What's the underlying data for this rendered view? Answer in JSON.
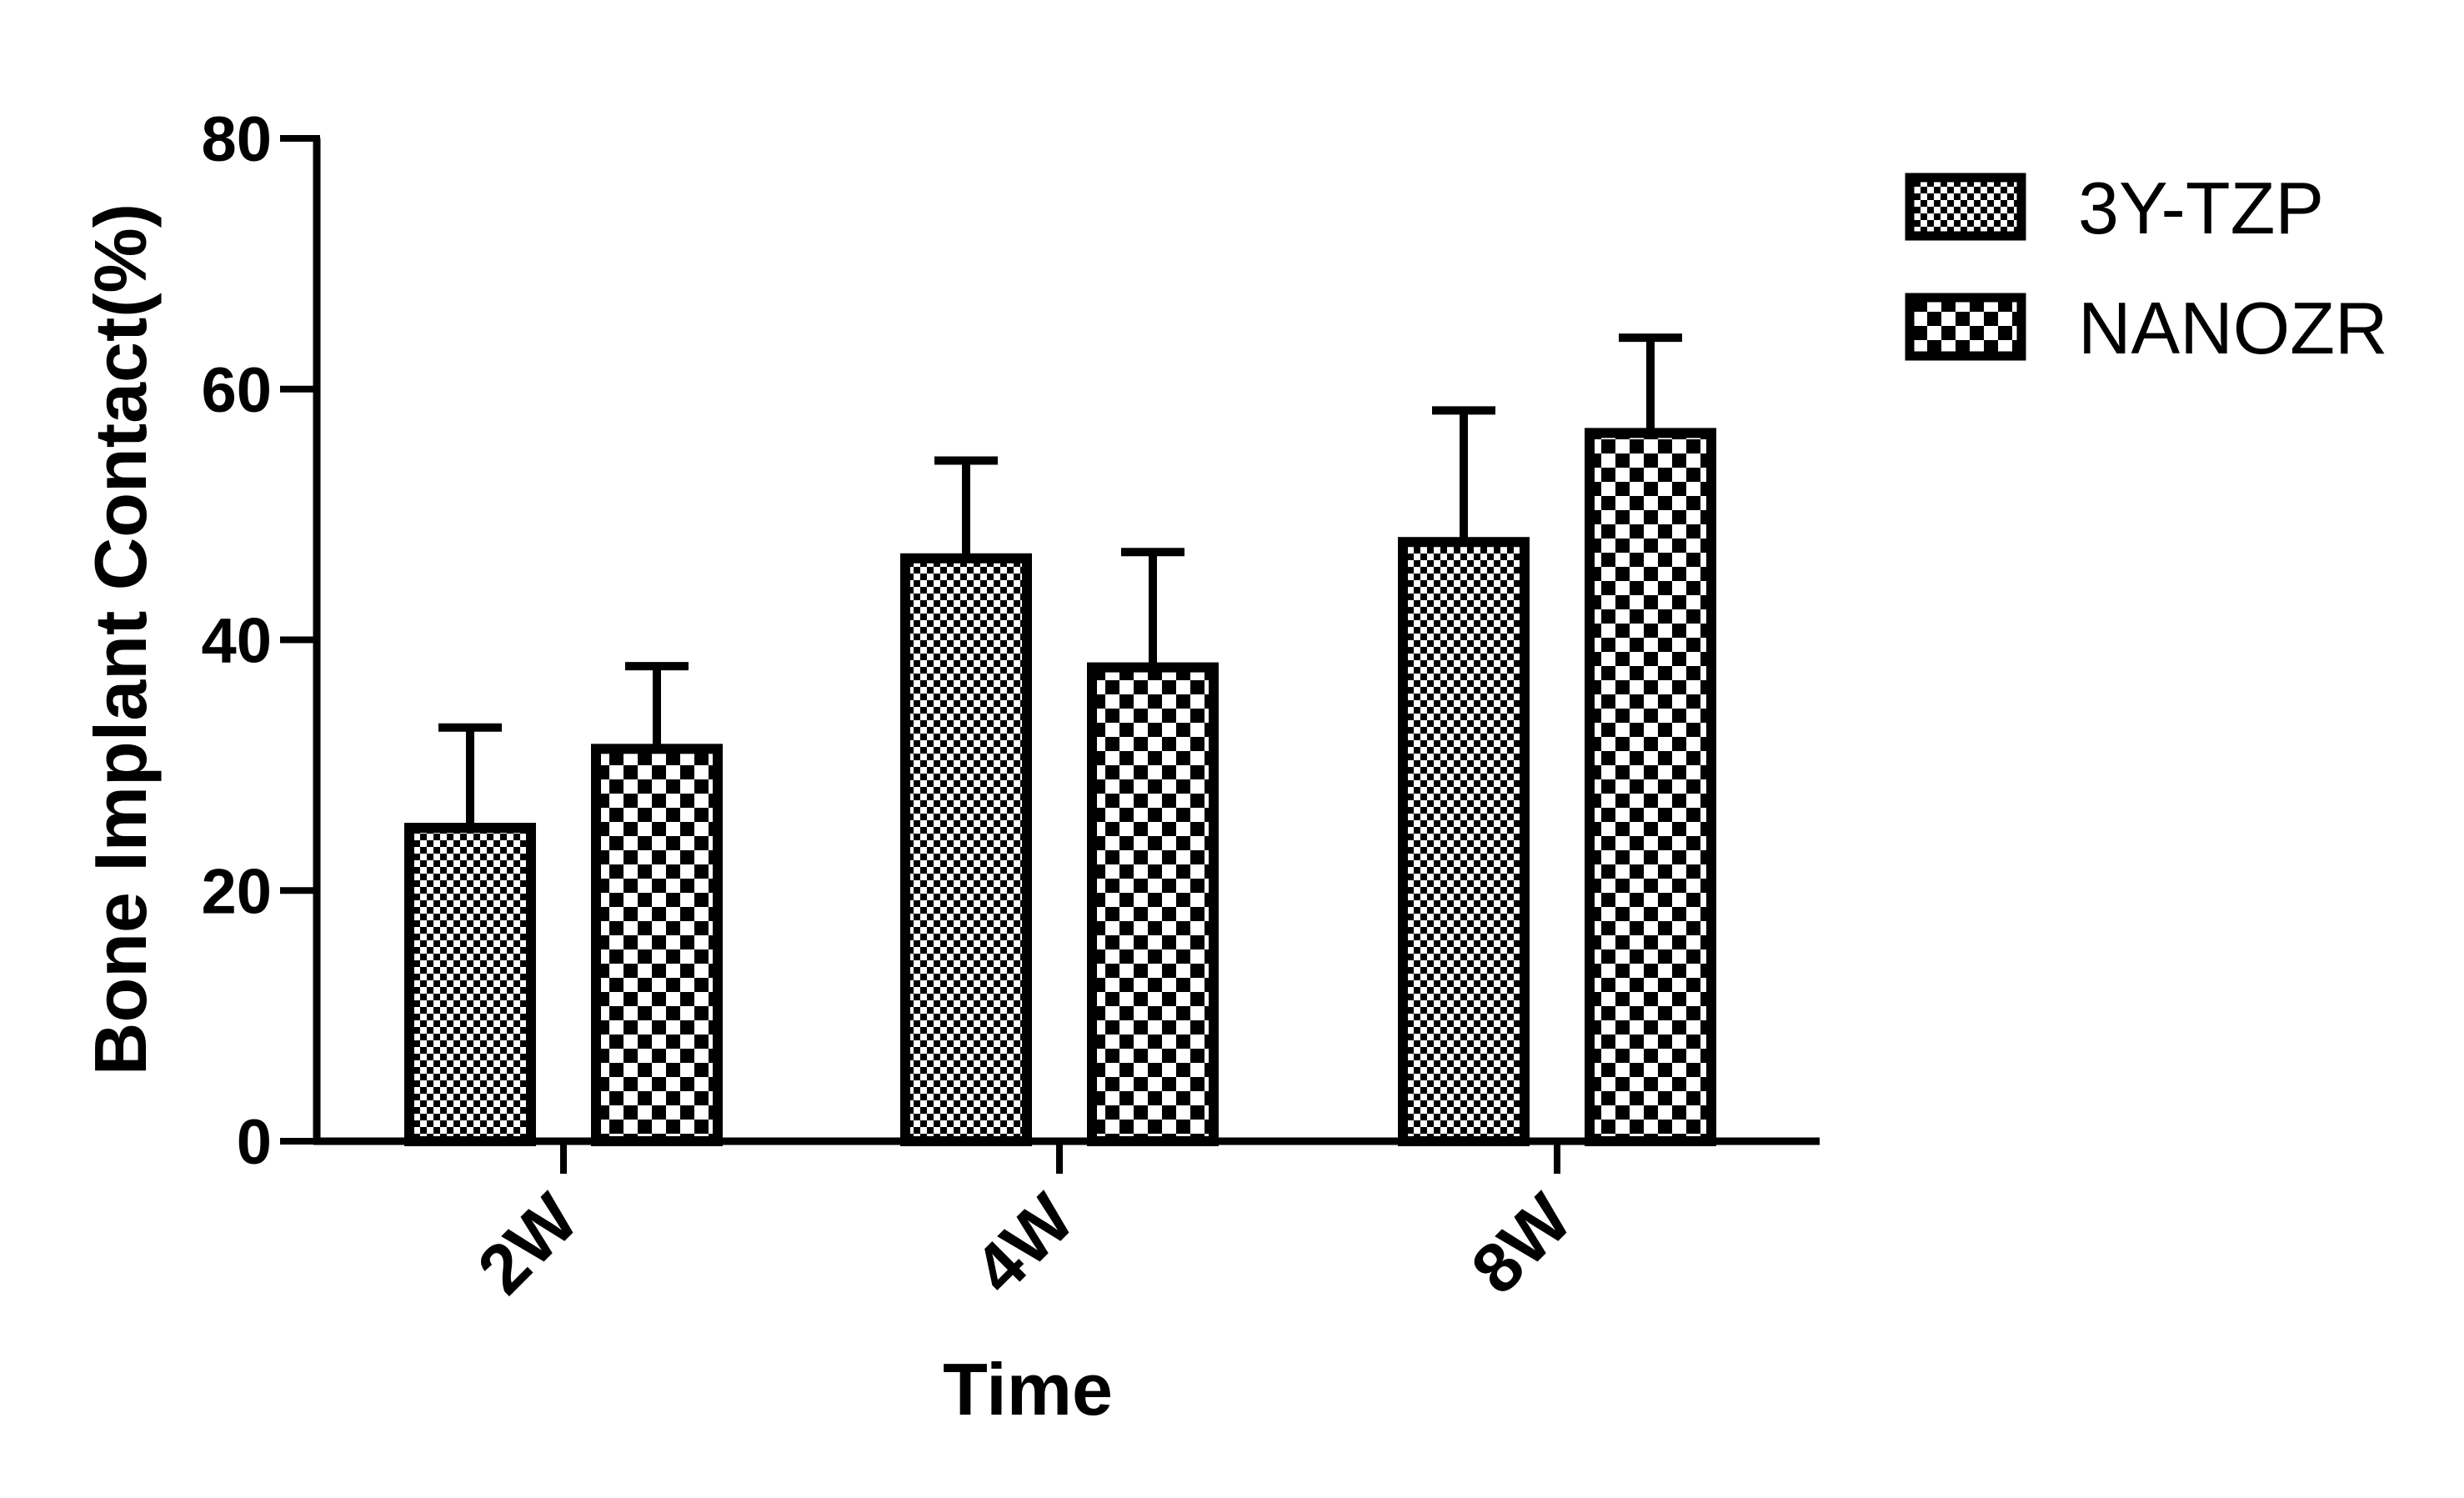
{
  "chart_data": {
    "type": "bar",
    "title": "",
    "xlabel": "Time",
    "ylabel": "Bone Implant Contact(%)",
    "categories": [
      "2W",
      "4W",
      "8W"
    ],
    "ylim": [
      0,
      80
    ],
    "yticks": [
      0,
      20,
      40,
      60,
      80
    ],
    "grid": false,
    "legend_position": "top-right",
    "series": [
      {
        "name": "3Y-TZP",
        "pattern": "fine-checker",
        "values": [
          25,
          46.5,
          47.8
        ],
        "errors": [
          8,
          7.8,
          10.5
        ]
      },
      {
        "name": "NANOZR",
        "pattern": "coarse-checker",
        "values": [
          31.3,
          37.8,
          56.5
        ],
        "errors": [
          6.6,
          9.2,
          7.6
        ]
      }
    ]
  },
  "colors": {
    "ink": "#000000",
    "background": "#ffffff"
  }
}
